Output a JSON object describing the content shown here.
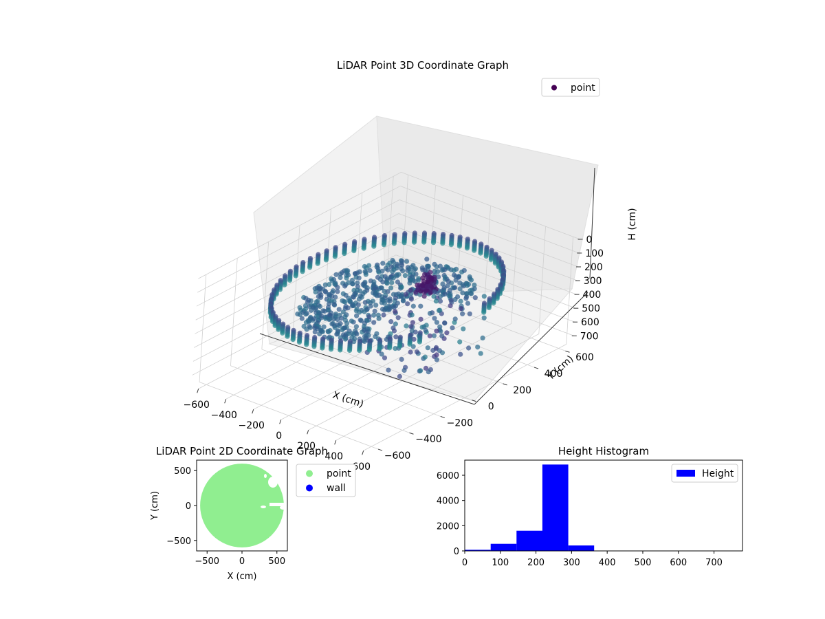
{
  "colors": {
    "viridis_dark": "#440154",
    "viridis_mid": "#31688e",
    "viridis_teal": "#35b779",
    "point_green": "#90ee90",
    "wall_blue": "#0000ff",
    "hist_blue": "#0000ff",
    "pane": "#f2f2f2",
    "grid": "#d0d0d0"
  },
  "chart_data": [
    {
      "type": "scatter",
      "title": "LiDAR Point 3D Coordinate Graph",
      "xlabel": "X (cm)",
      "ylabel": "Y (cm)",
      "zlabel": "H (cm)",
      "xticks": [
        "−600",
        "−400",
        "−200",
        "0",
        "200",
        "400",
        "600"
      ],
      "yticks": [
        "−600",
        "−400",
        "−200",
        "0",
        "200",
        "400",
        "600"
      ],
      "zticks": [
        "0",
        "100",
        "200",
        "300",
        "400",
        "500",
        "600",
        "700"
      ],
      "xlim": [
        -650,
        650
      ],
      "ylim": [
        -650,
        650
      ],
      "zlim": [
        0,
        780
      ],
      "z_inverted": true,
      "grid": true,
      "legend": {
        "position": "top-right",
        "entries": [
          "point"
        ]
      },
      "colormap": "viridis",
      "structure": {
        "wall_radius": 560,
        "wall_height_range": [
          200,
          280
        ],
        "floor_height": 300,
        "wall_gap_degrees": [
          -25,
          15
        ]
      }
    },
    {
      "type": "scatter",
      "title": "LiDAR Point 2D Coordinate Graph",
      "xlabel": "X (cm)",
      "ylabel": "Y (cm)",
      "xticks": [
        "−500",
        "0",
        "500"
      ],
      "yticks": [
        "500",
        "0",
        "−500"
      ],
      "xlim": [
        -650,
        650
      ],
      "ylim": [
        -650,
        650
      ],
      "legend": {
        "position": "outside-right",
        "entries": [
          "point",
          "wall"
        ]
      },
      "series": [
        {
          "name": "point",
          "color": "#90ee90",
          "shape": "filled-disc",
          "radius": 600
        },
        {
          "name": "wall",
          "color": "#0000ff",
          "count": 0
        }
      ]
    },
    {
      "type": "bar",
      "title": "Height Histogram",
      "xlabel": "",
      "ylabel": "",
      "xticks": [
        "0",
        "100",
        "200",
        "300",
        "400",
        "500",
        "600",
        "700"
      ],
      "yticks": [
        "0",
        "2000",
        "4000",
        "6000"
      ],
      "xlim": [
        0,
        780
      ],
      "ylim": [
        0,
        7200
      ],
      "legend": {
        "position": "top-right",
        "entries": [
          "Height"
        ]
      },
      "bin_edges": [
        0,
        72.7,
        145.3,
        218,
        290.7,
        363.3,
        436,
        508.7,
        581.3,
        654,
        726.7
      ],
      "values": [
        90,
        560,
        1600,
        6850,
        430,
        0,
        0,
        0,
        0,
        3
      ],
      "series": [
        {
          "name": "Height",
          "color": "#0000ff"
        }
      ]
    }
  ]
}
